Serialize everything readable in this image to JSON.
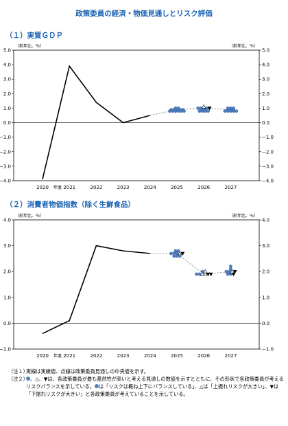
{
  "title": "政策委員の経済・物価見通しとリスク評価",
  "sections": {
    "gdp_title": "（１）実質ＧＤＰ",
    "cpi_title": "（２）消費者物価指数（除く生鮮食品）"
  },
  "colors": {
    "accent": "#1a62b4",
    "actual_line": "#000000",
    "dashed_line": "#7f7f7f",
    "marker_fill": "#4f80bd",
    "triangle_up_fill": "#ffffff",
    "triangle_down_fill": "#000000"
  },
  "chart_data": [
    {
      "type": "line",
      "title": "（１）実質ＧＤＰ",
      "unit_left": "（前年比、％）",
      "unit_right": "（前年比、％）",
      "xlabel": "年度",
      "x": [
        "2020",
        "2021",
        "2022",
        "2023",
        "2024",
        "2025",
        "2026",
        "2027"
      ],
      "ylim": [
        -4.0,
        5.0
      ],
      "yticks": [
        "5.0",
        "4.0",
        "3.0",
        "2.0",
        "1.0",
        "0.0",
        "−1.0",
        "−2.0",
        "−3.0",
        "−4.0"
      ],
      "ytick_values": [
        5,
        4,
        3,
        2,
        1,
        0,
        -1,
        -2,
        -3,
        -4
      ],
      "series": [
        {
          "kind": "actual",
          "x": [
            "2020",
            "2021",
            "2022",
            "2023",
            "2024"
          ],
          "values": [
            -3.9,
            3.9,
            1.4,
            0.0,
            0.5
          ]
        },
        {
          "kind": "median",
          "x": [
            "2024",
            "2025",
            "2026",
            "2027"
          ],
          "values": [
            0.5,
            0.9,
            1.0,
            0.9
          ]
        }
      ],
      "markers": [
        {
          "x": "2025",
          "shape": "circle",
          "values": [
            0.8,
            0.8,
            0.8,
            0.8,
            0.8,
            0.8,
            0.9,
            0.9,
            0.9,
            0.9,
            0.9,
            1.0,
            1.0
          ]
        },
        {
          "x": "2026",
          "shape": "circle",
          "values": [
            0.8,
            0.8,
            0.8,
            0.8,
            0.9,
            0.9,
            1.0,
            1.0,
            1.0,
            1.0
          ]
        },
        {
          "x": "2026",
          "shape": "triangle_up",
          "values": [
            1.1
          ]
        },
        {
          "x": "2026",
          "shape": "triangle_down",
          "values": [
            1.0
          ]
        },
        {
          "x": "2027",
          "shape": "circle",
          "values": [
            0.8,
            0.8,
            0.8,
            0.8,
            0.8,
            0.9,
            0.9,
            0.9,
            1.0,
            1.0,
            1.0
          ]
        }
      ]
    },
    {
      "type": "line",
      "title": "（２）消費者物価指数（除く生鮮食品）",
      "unit_left": "（前年比、％）",
      "unit_right": "（前年比、％）",
      "xlabel": "年度",
      "x": [
        "2020",
        "2021",
        "2022",
        "2023",
        "2024",
        "2025",
        "2026",
        "2027"
      ],
      "ylim": [
        -1.0,
        4.0
      ],
      "yticks": [
        "4.0",
        "3.0",
        "2.0",
        "1.0",
        "0.0",
        "−1.0"
      ],
      "ytick_values": [
        4,
        3,
        2,
        1,
        0,
        -1
      ],
      "series": [
        {
          "kind": "actual",
          "x": [
            "2020",
            "2021",
            "2022",
            "2023",
            "2024"
          ],
          "values": [
            -0.4,
            0.1,
            3.0,
            2.8,
            2.7
          ]
        },
        {
          "kind": "median",
          "x": [
            "2024",
            "2025",
            "2026",
            "2027"
          ],
          "values": [
            2.7,
            2.7,
            1.9,
            2.0
          ]
        }
      ],
      "markers": [
        {
          "x": "2025",
          "shape": "circle",
          "values": [
            2.6,
            2.6,
            2.6,
            2.7,
            2.7,
            2.7,
            2.8,
            2.8
          ]
        },
        {
          "x": "2025",
          "shape": "triangle_up",
          "values": [
            2.7
          ]
        },
        {
          "x": "2025",
          "shape": "triangle_down",
          "values": [
            2.7
          ]
        },
        {
          "x": "2026",
          "shape": "circle",
          "values": [
            1.9,
            1.9,
            2.0
          ]
        },
        {
          "x": "2026",
          "shape": "triangle_up",
          "values": [
            1.9,
            2.0,
            1.9
          ]
        },
        {
          "x": "2026",
          "shape": "triangle_down",
          "values": [
            1.9,
            1.9
          ]
        },
        {
          "x": "2027",
          "shape": "circle",
          "values": [
            1.9,
            1.9,
            2.0,
            2.0,
            2.1,
            2.2
          ]
        },
        {
          "x": "2027",
          "shape": "triangle_up",
          "values": [
            2.0
          ]
        },
        {
          "x": "2027",
          "shape": "triangle_down",
          "values": [
            1.9,
            2.0
          ]
        }
      ]
    }
  ],
  "notes": {
    "note1_label": "（注１）",
    "note1_text": "実線は実績値、点線は政策委員見通しの中央値を示す。",
    "note2_label": "（注２）",
    "note2_part1": "、△、▼は、各政策委員が最も蓋然性が高いと考える見通しの数値を示すとともに、その形状で各政策委員が考えるリスクバランスを示している。",
    "note2_part2": "は「リスクは概ね上下にバランスしている」、△は「上振れリスクが大きい」、▼は「下振れリスクが大きい」と各政策委員が考えていることを示している。"
  }
}
